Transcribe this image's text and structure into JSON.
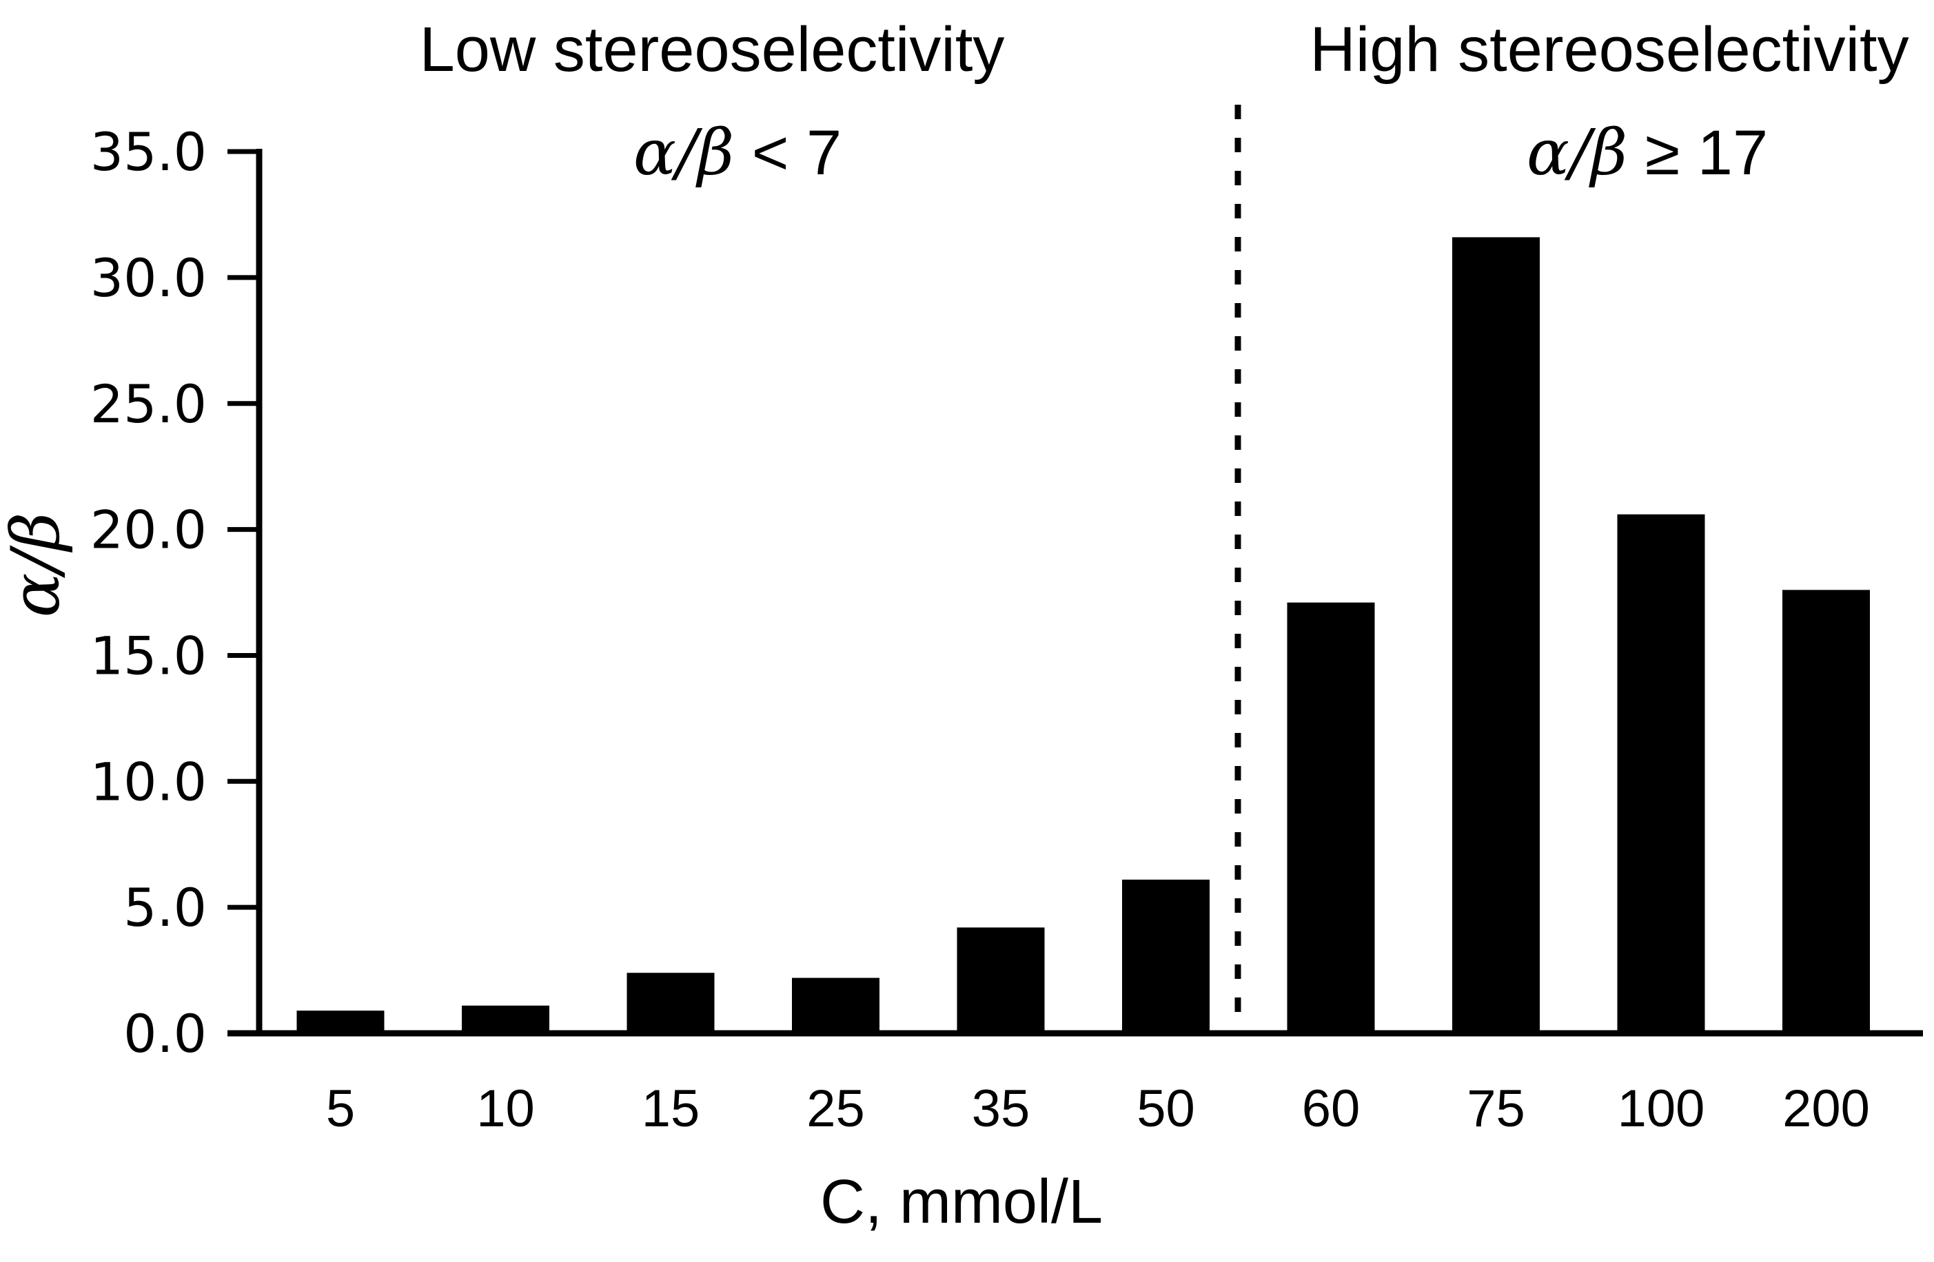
{
  "figure": {
    "y_axis_title": "α/β",
    "x_axis_title": "C, mmol/L",
    "regions": {
      "low": {
        "title": "Low stereoselectivity",
        "condition_symbol": "α/β",
        "condition_comparison": " < 7"
      },
      "high": {
        "title": "High stereoselectivity",
        "condition_symbol": "α/β",
        "condition_comparison": " ≥ 17"
      }
    }
  },
  "chart_data": {
    "type": "bar",
    "categories": [
      "5",
      "10",
      "15",
      "25",
      "35",
      "50",
      "60",
      "75",
      "100",
      "200"
    ],
    "values": [
      0.9,
      1.1,
      2.4,
      2.2,
      4.2,
      6.1,
      17.1,
      31.6,
      20.6,
      17.6
    ],
    "title": "",
    "xlabel": "C, mmol/L",
    "ylabel": "α/β",
    "ylim": [
      0,
      35
    ],
    "ytick_interval": 5,
    "ytick_labels": [
      "0.0",
      "5.0",
      "10.0",
      "15.0",
      "20.0",
      "25.0",
      "30.0",
      "35.0"
    ],
    "bar_color": "#000000",
    "axis_color": "#000000",
    "grid": false,
    "legend": false,
    "divider": {
      "after_category": "50",
      "after_index": 5,
      "style": "dashed"
    },
    "annotations": [
      {
        "region": "left",
        "line": 1,
        "text": "Low stereoselectivity"
      },
      {
        "region": "left",
        "line": 2,
        "text": "α/β < 7"
      },
      {
        "region": "right",
        "line": 1,
        "text": "High stereoselectivity"
      },
      {
        "region": "right",
        "line": 2,
        "text": "α/β ≥ 17"
      }
    ]
  }
}
